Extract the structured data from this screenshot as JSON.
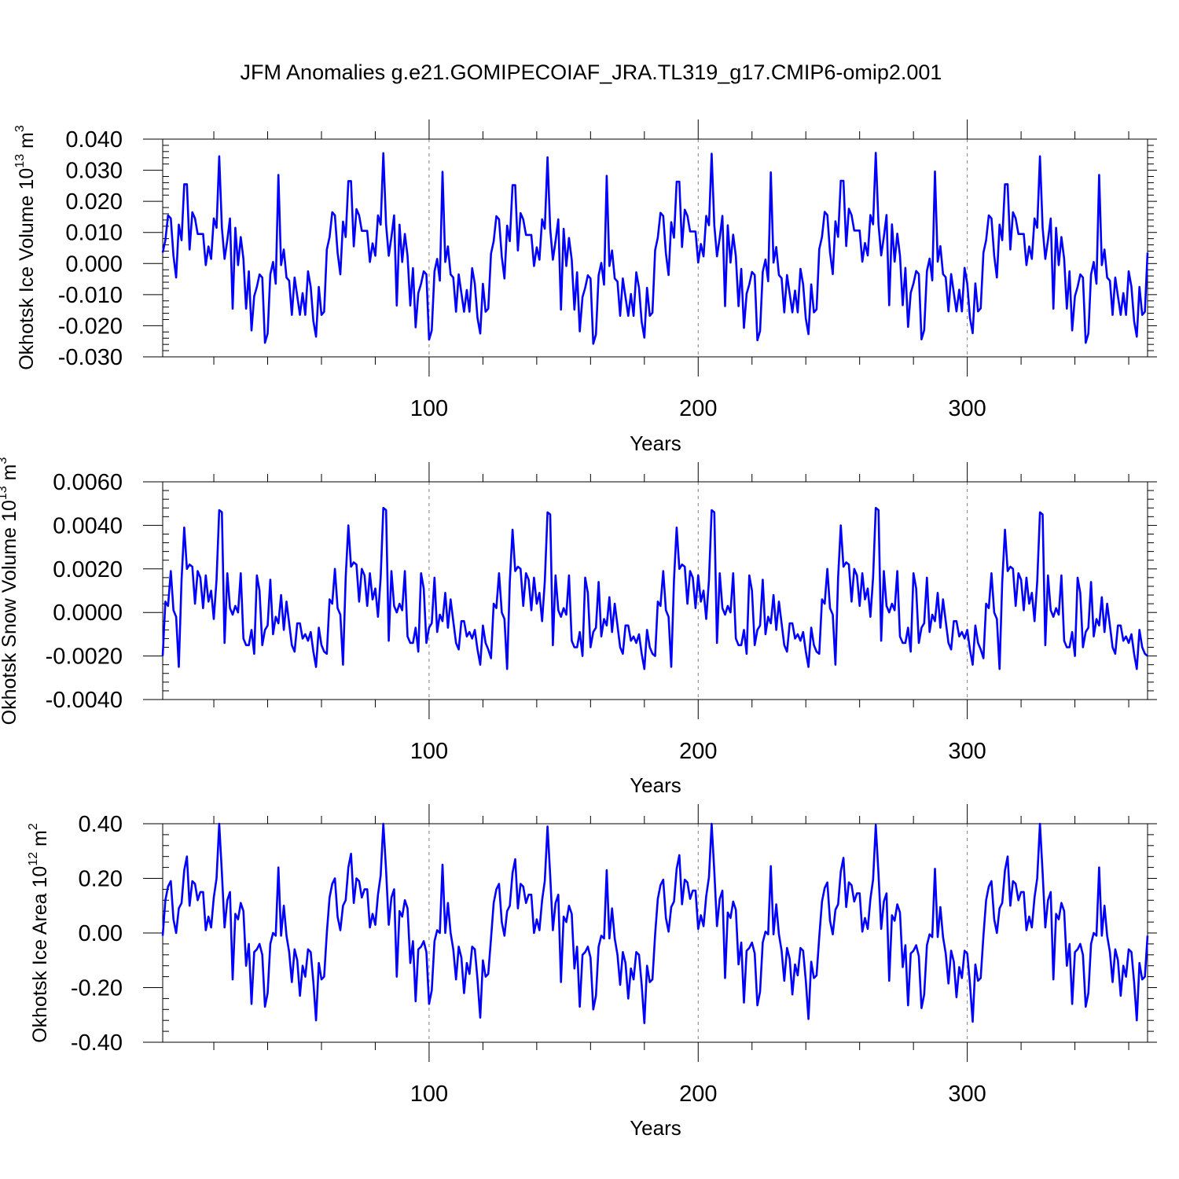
{
  "title": "JFM Anomalies g.e21.GOMIPECOIAF_JRA.TL319_g17.CMIP6-omip2.001",
  "colors": {
    "series": "#0000ff",
    "axis": "#000000",
    "grid": "#808080",
    "background": "#ffffff"
  },
  "chart_data": [
    {
      "type": "line",
      "series_name": "Okhotsk Ice Volume",
      "ylabel": {
        "main": "Okhotsk Ice Volume 10",
        "exp": "13",
        "unit": " m",
        "unit_exp": "3"
      },
      "xlabel": "Years",
      "xlim": [
        1,
        367
      ],
      "ylim": [
        -0.03,
        0.04
      ],
      "x_ticks": [
        "100",
        "200",
        "300"
      ],
      "y_ticks": [
        "0.040",
        "0.030",
        "0.020",
        "0.010",
        "0.000",
        "-0.010",
        "-0.020",
        "-0.030"
      ],
      "grid_x": [
        100,
        200,
        300
      ],
      "cycle_period": 61,
      "cycle": [
        0.004,
        0.008,
        0.016,
        0.015,
        0.003,
        -0.004,
        0.013,
        0.008,
        0.026,
        0.026,
        0.005,
        0.017,
        0.015,
        0.01,
        0.01,
        0.01,
        0.0,
        0.006,
        0.002,
        0.015,
        0.012,
        0.035,
        0.012,
        0.002,
        0.008,
        0.015,
        -0.014,
        0.012,
        0.0,
        0.009,
        0.002,
        -0.014,
        -0.002,
        -0.021,
        -0.01,
        -0.007,
        -0.003,
        -0.004,
        -0.025,
        -0.022,
        -0.003,
        0.001,
        -0.006,
        0.029,
        0.0,
        0.005,
        -0.004,
        -0.005,
        -0.016,
        -0.004,
        -0.01,
        -0.016,
        -0.009,
        -0.016,
        -0.002,
        -0.007,
        -0.018,
        -0.023,
        -0.007,
        -0.016,
        -0.015
      ],
      "phase_shift": [
        -0.0005,
        0.0005,
        -0.0008,
        0.0003,
        0.0006,
        -0.0005
      ]
    },
    {
      "type": "line",
      "series_name": "Okhotsk Snow Volume",
      "ylabel": {
        "main": "Okhotsk Snow Volume 10",
        "exp": "13",
        "unit": " m",
        "unit_exp": "3"
      },
      "xlabel": "Years",
      "xlim": [
        1,
        367
      ],
      "ylim": [
        -0.004,
        0.006
      ],
      "x_ticks": [
        "100",
        "200",
        "300"
      ],
      "y_ticks": [
        "0.0060",
        "0.0040",
        "0.0020",
        "0.0000",
        "-0.0020",
        "-0.0040"
      ],
      "grid_x": [
        100,
        200,
        300
      ],
      "cycle_period": 61,
      "cycle": [
        -0.002,
        0.0005,
        0.0003,
        0.0019,
        0.0001,
        -0.0002,
        -0.0025,
        0.0015,
        0.0039,
        0.002,
        0.0022,
        0.0021,
        0.0004,
        0.0019,
        0.0016,
        0.0002,
        0.0017,
        0.0005,
        0.001,
        -0.0003,
        0.0015,
        0.0047,
        0.0046,
        -0.0014,
        0.0018,
        0.0002,
        -0.0001,
        0.0003,
        0.0,
        0.0018,
        -0.0012,
        -0.0015,
        -0.0015,
        -0.0008,
        -0.0019,
        0.0017,
        0.001,
        -0.0015,
        -0.0008,
        -0.0006,
        0.0015,
        -0.001,
        -0.0002,
        -0.0005,
        0.0008,
        -0.0008,
        0.0005,
        -0.0005,
        -0.0015,
        -0.0018,
        -0.0005,
        -0.0005,
        -0.0012,
        -0.001,
        -0.0013,
        -0.0009,
        -0.0018,
        -0.0025,
        -0.0007,
        -0.0015,
        -0.0018
      ],
      "phase_shift": [
        0.0,
        0.0001,
        -0.0001,
        0.0,
        0.0001,
        -0.0001
      ]
    },
    {
      "type": "line",
      "series_name": "Okhotsk Ice Area",
      "ylabel": {
        "main": "Okhotsk Ice Area 10",
        "exp": "12",
        "unit": " m",
        "unit_exp": "2"
      },
      "xlabel": "Years",
      "xlim": [
        1,
        367
      ],
      "ylim": [
        -0.4,
        0.4
      ],
      "x_ticks": [
        "100",
        "200",
        "300"
      ],
      "y_ticks": [
        "0.40",
        "0.20",
        "0.00",
        "-0.20",
        "-0.40"
      ],
      "grid_x": [
        100,
        200,
        300
      ],
      "cycle_period": 61,
      "cycle": [
        -0.01,
        0.12,
        0.17,
        0.19,
        0.05,
        0.0,
        0.09,
        0.11,
        0.23,
        0.28,
        0.1,
        0.19,
        0.18,
        0.12,
        0.15,
        0.15,
        0.01,
        0.06,
        0.02,
        0.13,
        0.2,
        0.4,
        0.22,
        0.02,
        0.12,
        0.15,
        -0.17,
        0.07,
        0.05,
        0.11,
        0.08,
        -0.12,
        -0.04,
        -0.26,
        -0.07,
        -0.06,
        -0.04,
        -0.08,
        -0.27,
        -0.22,
        -0.04,
        0.0,
        -0.01,
        0.24,
        -0.01,
        0.1,
        -0.01,
        -0.07,
        -0.18,
        -0.06,
        -0.1,
        -0.23,
        -0.12,
        -0.16,
        -0.06,
        -0.07,
        -0.18,
        -0.32,
        -0.11,
        -0.17,
        -0.16
      ],
      "phase_shift": [
        0.0,
        0.01,
        -0.01,
        0.005,
        -0.005,
        0.0
      ]
    }
  ]
}
